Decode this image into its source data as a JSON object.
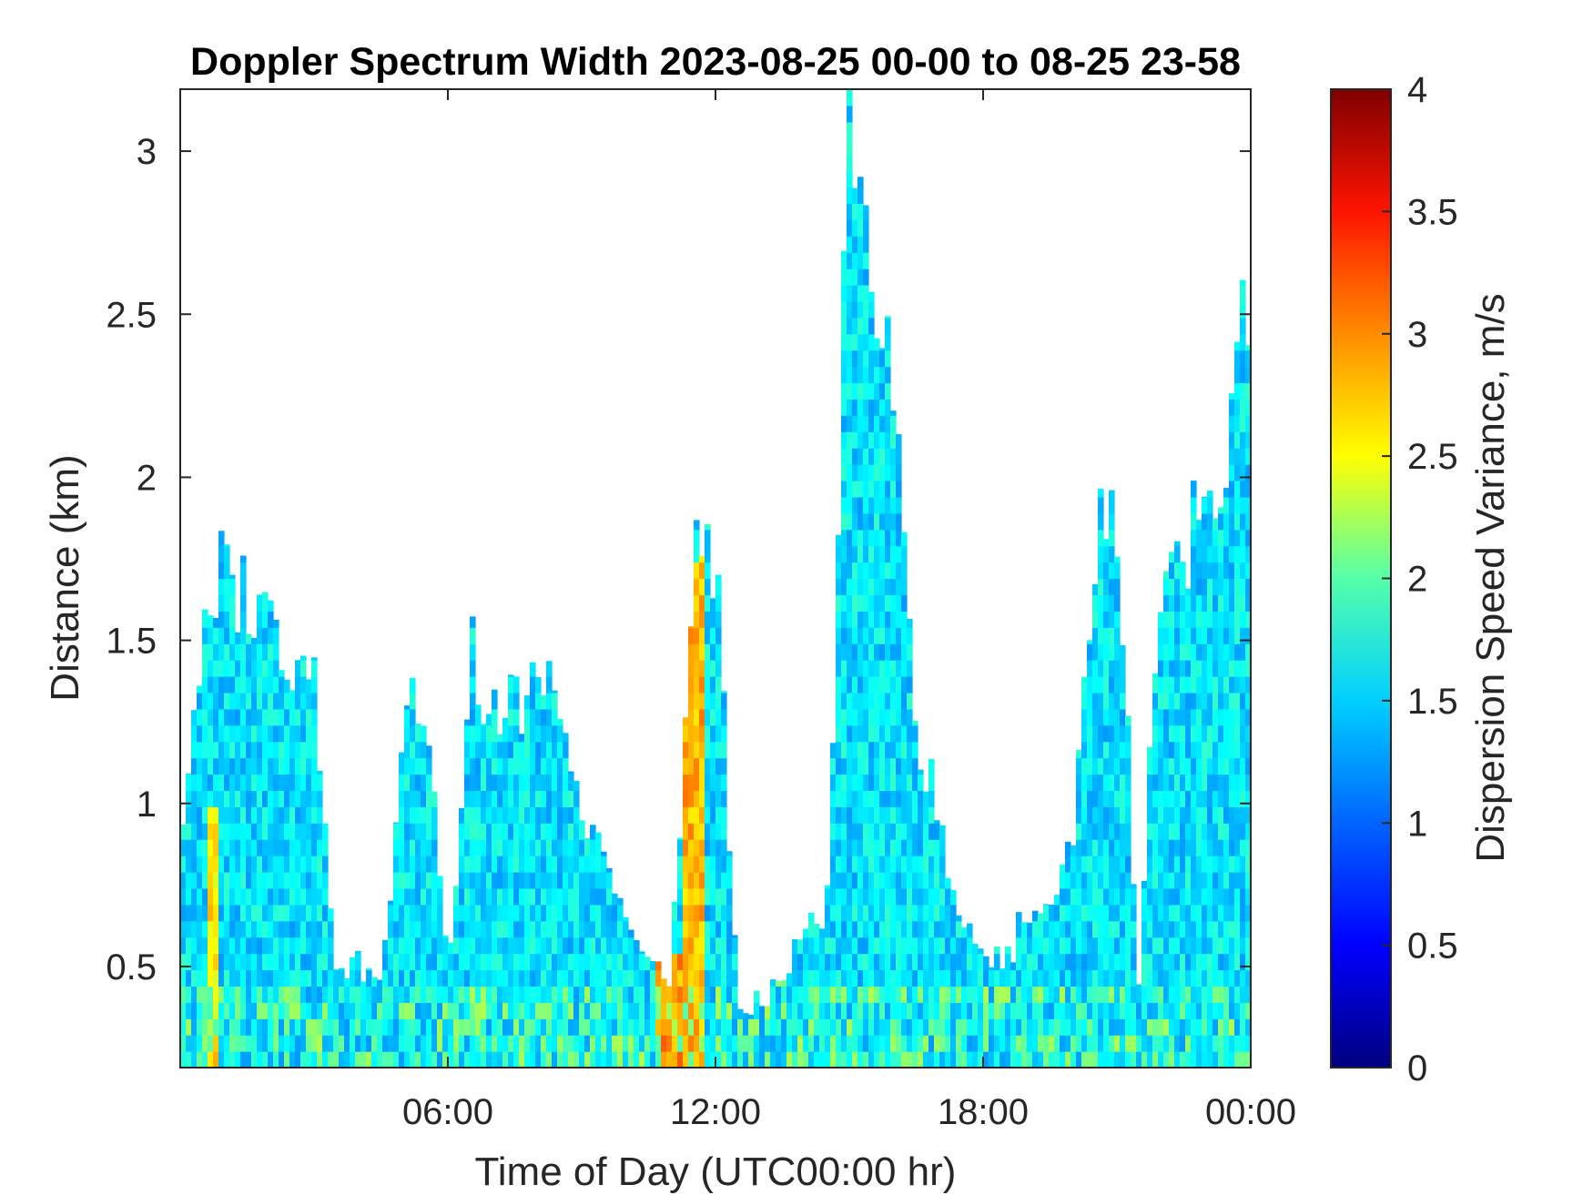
{
  "chart_data": {
    "type": "heatmap",
    "title": "Doppler Spectrum Width 2023-08-25 00-00 to 08-25 23-58",
    "xlabel": "Time of Day (UTC00:00 hr)",
    "ylabel": "Distance (km)",
    "colorbar_label": "Dispersion Speed Variance, m/s",
    "colormap": "jet",
    "xlim": [
      0,
      24
    ],
    "ylim": [
      0.19,
      3.19
    ],
    "clim": [
      0,
      4
    ],
    "x_ticks": [
      6,
      12,
      18,
      24
    ],
    "x_tick_labels": [
      "06:00",
      "12:00",
      "18:00",
      "00:00"
    ],
    "y_ticks": [
      0.5,
      1,
      1.5,
      2,
      2.5,
      3
    ],
    "y_tick_labels": [
      "0.5",
      "1",
      "1.5",
      "2",
      "2.5",
      "3"
    ],
    "colorbar_ticks": [
      0,
      0.5,
      1,
      1.5,
      2,
      2.5,
      3,
      3.5,
      4
    ],
    "colorbar_tick_labels": [
      "0",
      "0.5",
      "1",
      "1.5",
      "2",
      "2.5",
      "3",
      "3.5",
      "4"
    ],
    "grid": false,
    "data_top_km_by_hour": {
      "hours": [
        0,
        0.5,
        1,
        1.5,
        2,
        2.5,
        3,
        3.5,
        4,
        4.5,
        5,
        5.5,
        6,
        6.5,
        7,
        7.5,
        8,
        8.5,
        9,
        9.5,
        10,
        10.5,
        11,
        11.5,
        12,
        12.5,
        13,
        13.5,
        14,
        14.5,
        15,
        15.5,
        16,
        16.5,
        17,
        17.5,
        18,
        18.5,
        19,
        19.5,
        20,
        20.5,
        21,
        21.5,
        22,
        22.5,
        23,
        23.5,
        24
      ],
      "top_km": [
        0.95,
        1.5,
        1.72,
        1.6,
        1.5,
        1.48,
        1.45,
        0.45,
        0.5,
        0.42,
        1.25,
        1.3,
        0.45,
        1.45,
        1.3,
        1.35,
        1.3,
        1.32,
        0.95,
        0.85,
        0.7,
        0.55,
        0.45,
        1.75,
        1.75,
        0.35,
        0.4,
        0.45,
        0.6,
        0.65,
        3.1,
        2.6,
        2.3,
        1.2,
        1.0,
        0.6,
        0.55,
        0.5,
        0.7,
        0.75,
        0.85,
        1.85,
        1.85,
        0.45,
        1.8,
        1.8,
        1.85,
        2.2,
        2.55
      ]
    },
    "typical_width_m_s": 1.4,
    "high_width_events": [
      {
        "hours": [
          10.6,
          11.3
        ],
        "max_km": 0.55,
        "value_m_s": 2.9
      },
      {
        "hours": [
          11.3,
          11.8
        ],
        "max_km": 1.75,
        "value_m_s": 2.8
      },
      {
        "hours": [
          0.6,
          0.9
        ],
        "max_km": 1.0,
        "value_m_s": 2.6
      }
    ]
  },
  "colors": {
    "axes_line": "#262626",
    "colormap_stops": [
      "#00007f",
      "#0000ff",
      "#007fff",
      "#00ffff",
      "#7fff7f",
      "#ffff00",
      "#ff7f00",
      "#ff0000",
      "#7f0000"
    ]
  }
}
